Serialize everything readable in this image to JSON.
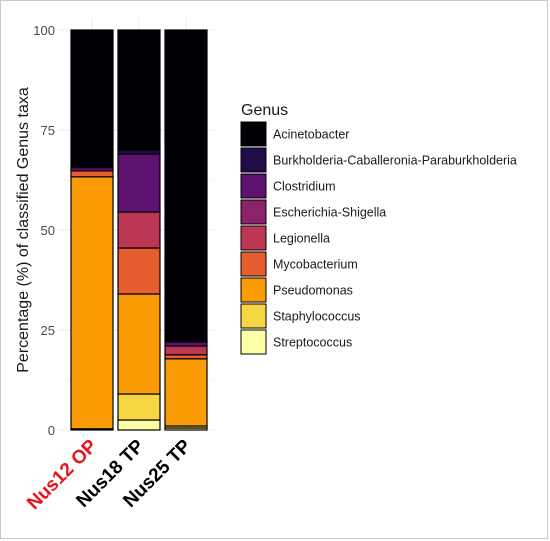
{
  "chart_data": {
    "type": "bar",
    "stacked": true,
    "ylabel": "Percentage (%) of classified Genus taxa",
    "xlabel": "",
    "ylim": [
      0,
      100
    ],
    "yticks": [
      0,
      25,
      50,
      75,
      100
    ],
    "grid": true,
    "legend_title": "Genus",
    "legend_position": "right",
    "categories": [
      "Nus12 OP",
      "Nus18 TP",
      "Nus25 TP"
    ],
    "category_colors": [
      "#e8141c",
      "#000000",
      "#000000"
    ],
    "series": [
      {
        "name": "Streptococcus",
        "color": "#fcffa4",
        "values": [
          0.3,
          2.5,
          0.5
        ]
      },
      {
        "name": "Staphylococcus",
        "color": "#f6d643",
        "values": [
          0.0,
          6.5,
          0.5
        ]
      },
      {
        "name": "Pseudomonas",
        "color": "#fb9b06",
        "values": [
          63.0,
          25.0,
          16.8
        ]
      },
      {
        "name": "Mycobacterium",
        "color": "#e65d2f",
        "values": [
          1.5,
          11.5,
          1.0
        ]
      },
      {
        "name": "Legionella",
        "color": "#bc3754",
        "values": [
          0.0,
          9.0,
          2.2
        ]
      },
      {
        "name": "Escherichia-Shigella",
        "color": "#8b226a",
        "values": [
          0.0,
          0.0,
          0.0
        ]
      },
      {
        "name": "Clostridium",
        "color": "#5c126e",
        "values": [
          0.8,
          14.5,
          1.0
        ]
      },
      {
        "name": "Burkholderia-Caballeronia-Paraburkholderia",
        "color": "#210c4a",
        "values": [
          0.4,
          1.0,
          0.4
        ]
      },
      {
        "name": "Acinetobacter",
        "color": "#000004",
        "values": [
          34.0,
          30.0,
          77.6
        ]
      }
    ]
  }
}
